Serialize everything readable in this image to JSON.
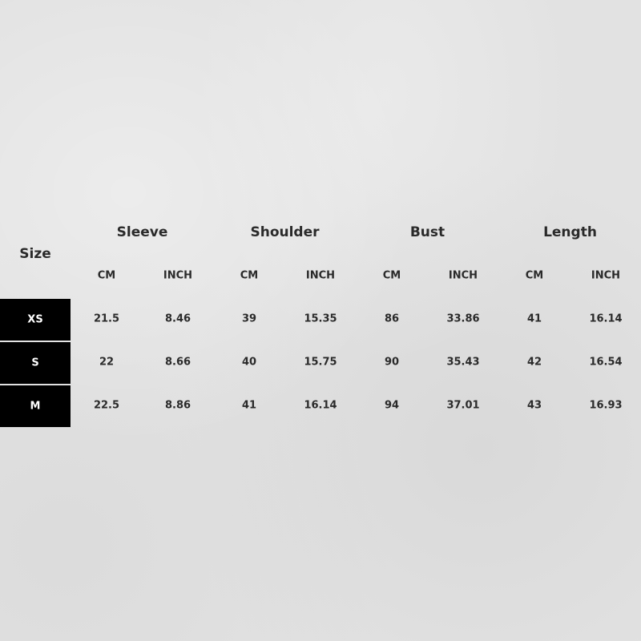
{
  "size_label": "Size",
  "groups": [
    "Sleeve",
    "Shoulder",
    "Bust",
    "Length"
  ],
  "units": [
    "CM",
    "INCH"
  ],
  "rows": [
    {
      "size": "XS",
      "values": [
        "21.5",
        "8.46",
        "39",
        "15.35",
        "86",
        "33.86",
        "41",
        "16.14"
      ]
    },
    {
      "size": "S",
      "values": [
        "22",
        "8.66",
        "40",
        "15.75",
        "90",
        "35.43",
        "42",
        "16.54"
      ]
    },
    {
      "size": "M",
      "values": [
        "22.5",
        "8.86",
        "41",
        "16.14",
        "94",
        "37.01",
        "43",
        "16.93"
      ]
    }
  ],
  "colors": {
    "size_box": "#000000",
    "text": "#2a2a2a",
    "background": "#e2e2e2"
  }
}
